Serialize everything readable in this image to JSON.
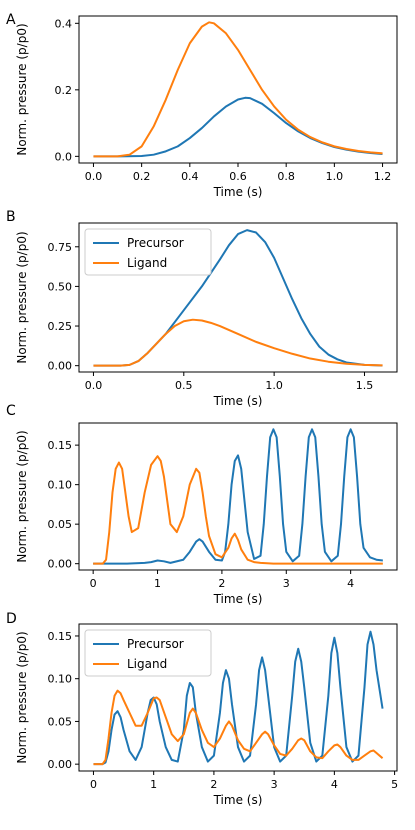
{
  "colors": {
    "precursor": "#1f77b4",
    "ligand": "#ff7f0e",
    "axis": "#000000",
    "legend_border": "#cccccc"
  },
  "chart_data": [
    {
      "panel": "A",
      "type": "line",
      "xlabel": "Time (s)",
      "ylabel": "Norm. pressure (p/p0)",
      "xlim": [
        -0.06,
        1.26
      ],
      "ylim": [
        -0.02,
        0.422
      ],
      "xticks": [
        0.0,
        0.2,
        0.4,
        0.6,
        0.8,
        1.0,
        1.2
      ],
      "xtick_labels": [
        "0.0",
        "0.2",
        "0.4",
        "0.6",
        "0.8",
        "1.0",
        "1.2"
      ],
      "yticks": [
        0.0,
        0.2,
        0.4
      ],
      "ytick_labels": [
        "0.0",
        "0.2",
        "0.4"
      ],
      "grid": false,
      "legend": null,
      "series": [
        {
          "color_key": "precursor",
          "x": [
            0,
            0.1,
            0.2,
            0.25,
            0.3,
            0.35,
            0.4,
            0.45,
            0.5,
            0.55,
            0.6,
            0.63,
            0.65,
            0.7,
            0.75,
            0.8,
            0.85,
            0.9,
            0.95,
            1.0,
            1.05,
            1.1,
            1.15,
            1.2
          ],
          "y": [
            0,
            0,
            0.001,
            0.005,
            0.015,
            0.03,
            0.055,
            0.085,
            0.12,
            0.15,
            0.171,
            0.176,
            0.175,
            0.158,
            0.13,
            0.1,
            0.075,
            0.055,
            0.04,
            0.028,
            0.02,
            0.014,
            0.01,
            0.007
          ]
        },
        {
          "color_key": "ligand",
          "x": [
            0,
            0.1,
            0.15,
            0.2,
            0.25,
            0.3,
            0.35,
            0.4,
            0.45,
            0.48,
            0.5,
            0.55,
            0.6,
            0.65,
            0.7,
            0.75,
            0.8,
            0.85,
            0.9,
            0.95,
            1.0,
            1.05,
            1.1,
            1.15,
            1.2
          ],
          "y": [
            0,
            0,
            0.005,
            0.03,
            0.09,
            0.17,
            0.26,
            0.34,
            0.39,
            0.403,
            0.4,
            0.37,
            0.32,
            0.26,
            0.2,
            0.15,
            0.11,
            0.08,
            0.058,
            0.042,
            0.03,
            0.022,
            0.016,
            0.012,
            0.009
          ]
        }
      ]
    },
    {
      "panel": "B",
      "type": "line",
      "xlabel": "Time (s)",
      "ylabel": "Norm. pressure (p/p0)",
      "xlim": [
        -0.08,
        1.68
      ],
      "ylim": [
        -0.04,
        0.9
      ],
      "xticks": [
        0.0,
        0.5,
        1.0,
        1.5
      ],
      "xtick_labels": [
        "0.0",
        "0.5",
        "1.0",
        "1.5"
      ],
      "yticks": [
        0.0,
        0.25,
        0.5,
        0.75
      ],
      "ytick_labels": [
        "0.00",
        "0.25",
        "0.50",
        "0.75"
      ],
      "grid": false,
      "legend": {
        "placement": "upper-left",
        "entries": [
          {
            "label": "Precursor",
            "color_key": "precursor"
          },
          {
            "label": "Ligand",
            "color_key": "ligand"
          }
        ]
      },
      "series": [
        {
          "color_key": "precursor",
          "x": [
            0,
            0.15,
            0.2,
            0.25,
            0.3,
            0.4,
            0.5,
            0.6,
            0.7,
            0.75,
            0.8,
            0.85,
            0.9,
            0.95,
            1.0,
            1.05,
            1.1,
            1.15,
            1.2,
            1.25,
            1.3,
            1.35,
            1.4,
            1.5,
            1.6
          ],
          "y": [
            0,
            0,
            0.005,
            0.03,
            0.08,
            0.2,
            0.35,
            0.5,
            0.67,
            0.76,
            0.83,
            0.855,
            0.84,
            0.78,
            0.68,
            0.55,
            0.42,
            0.3,
            0.2,
            0.12,
            0.07,
            0.04,
            0.02,
            0.005,
            0.001
          ]
        },
        {
          "color_key": "ligand",
          "x": [
            0,
            0.15,
            0.2,
            0.25,
            0.3,
            0.35,
            0.4,
            0.45,
            0.5,
            0.55,
            0.6,
            0.65,
            0.7,
            0.8,
            0.9,
            1.0,
            1.1,
            1.2,
            1.3,
            1.4,
            1.5,
            1.6
          ],
          "y": [
            0,
            0,
            0.005,
            0.03,
            0.08,
            0.14,
            0.2,
            0.25,
            0.28,
            0.29,
            0.285,
            0.27,
            0.25,
            0.2,
            0.15,
            0.11,
            0.075,
            0.045,
            0.025,
            0.012,
            0.005,
            0.002
          ]
        }
      ]
    },
    {
      "panel": "C",
      "type": "line",
      "xlabel": "Time (s)",
      "ylabel": "Norm. pressure (p/p0)",
      "xlim": [
        -0.22,
        4.72
      ],
      "ylim": [
        -0.008,
        0.178
      ],
      "xticks": [
        0,
        1,
        2,
        3,
        4
      ],
      "xtick_labels": [
        "0",
        "1",
        "2",
        "3",
        "4"
      ],
      "yticks": [
        0.0,
        0.05,
        0.1,
        0.15
      ],
      "ytick_labels": [
        "0.00",
        "0.05",
        "0.10",
        "0.15"
      ],
      "grid": false,
      "legend": null,
      "series": [
        {
          "color_key": "precursor",
          "x": [
            0,
            0.5,
            0.8,
            0.9,
            1.0,
            1.1,
            1.2,
            1.4,
            1.5,
            1.6,
            1.65,
            1.7,
            1.8,
            1.9,
            2.0,
            2.05,
            2.1,
            2.15,
            2.2,
            2.25,
            2.3,
            2.35,
            2.4,
            2.5,
            2.6,
            2.65,
            2.7,
            2.75,
            2.8,
            2.85,
            2.9,
            2.95,
            3.0,
            3.1,
            3.2,
            3.25,
            3.3,
            3.35,
            3.4,
            3.45,
            3.5,
            3.55,
            3.6,
            3.7,
            3.8,
            3.85,
            3.9,
            3.95,
            4.0,
            4.05,
            4.1,
            4.15,
            4.2,
            4.3,
            4.4,
            4.5
          ],
          "y": [
            0,
            0,
            0.001,
            0.002,
            0.004,
            0.003,
            0.001,
            0.005,
            0.015,
            0.028,
            0.031,
            0.028,
            0.015,
            0.005,
            0.004,
            0.015,
            0.05,
            0.1,
            0.13,
            0.137,
            0.12,
            0.08,
            0.04,
            0.006,
            0.01,
            0.05,
            0.11,
            0.16,
            0.17,
            0.16,
            0.11,
            0.05,
            0.015,
            0.003,
            0.01,
            0.05,
            0.11,
            0.16,
            0.17,
            0.16,
            0.11,
            0.05,
            0.015,
            0.003,
            0.01,
            0.05,
            0.11,
            0.16,
            0.17,
            0.16,
            0.11,
            0.05,
            0.02,
            0.008,
            0.005,
            0.004
          ]
        },
        {
          "color_key": "ligand",
          "x": [
            0,
            0.15,
            0.2,
            0.25,
            0.3,
            0.35,
            0.4,
            0.45,
            0.5,
            0.55,
            0.6,
            0.7,
            0.8,
            0.9,
            1.0,
            1.05,
            1.1,
            1.15,
            1.2,
            1.3,
            1.4,
            1.5,
            1.6,
            1.65,
            1.7,
            1.75,
            1.8,
            1.9,
            2.0,
            2.1,
            2.15,
            2.2,
            2.25,
            2.3,
            2.4,
            2.5,
            2.6,
            2.8,
            3.0,
            3.5,
            4.0,
            4.5
          ],
          "y": [
            0,
            0,
            0.005,
            0.04,
            0.09,
            0.12,
            0.128,
            0.12,
            0.09,
            0.06,
            0.04,
            0.045,
            0.09,
            0.125,
            0.136,
            0.13,
            0.11,
            0.08,
            0.05,
            0.04,
            0.06,
            0.1,
            0.12,
            0.115,
            0.09,
            0.06,
            0.035,
            0.012,
            0.008,
            0.02,
            0.032,
            0.038,
            0.03,
            0.018,
            0.005,
            0.002,
            0.001,
            0,
            0,
            0,
            0,
            0
          ]
        }
      ]
    },
    {
      "panel": "D",
      "type": "line",
      "xlabel": "Time (s)",
      "ylabel": "Norm. pressure (p/p0)",
      "xlim": [
        -0.24,
        5.04
      ],
      "ylim": [
        -0.008,
        0.164
      ],
      "xticks": [
        0,
        1,
        2,
        3,
        4,
        5
      ],
      "xtick_labels": [
        "0",
        "1",
        "2",
        "3",
        "4",
        "5"
      ],
      "yticks": [
        0.0,
        0.05,
        0.1,
        0.15
      ],
      "ytick_labels": [
        "0.00",
        "0.05",
        "0.10",
        "0.15"
      ],
      "grid": false,
      "legend": {
        "placement": "upper-left",
        "entries": [
          {
            "label": "Precursor",
            "color_key": "precursor"
          },
          {
            "label": "Ligand",
            "color_key": "ligand"
          }
        ]
      },
      "series": [
        {
          "color_key": "precursor",
          "x": [
            0,
            0.15,
            0.2,
            0.25,
            0.3,
            0.35,
            0.4,
            0.45,
            0.5,
            0.6,
            0.7,
            0.8,
            0.9,
            0.95,
            1.0,
            1.05,
            1.1,
            1.2,
            1.3,
            1.4,
            1.5,
            1.55,
            1.6,
            1.65,
            1.7,
            1.8,
            1.9,
            2.0,
            2.1,
            2.15,
            2.2,
            2.25,
            2.3,
            2.4,
            2.5,
            2.6,
            2.7,
            2.75,
            2.8,
            2.85,
            2.9,
            3.0,
            3.1,
            3.2,
            3.3,
            3.35,
            3.4,
            3.45,
            3.5,
            3.6,
            3.7,
            3.8,
            3.9,
            3.95,
            4.0,
            4.05,
            4.1,
            4.2,
            4.3,
            4.4,
            4.5,
            4.55,
            4.6,
            4.65,
            4.7,
            4.8
          ],
          "y": [
            0,
            0,
            0.002,
            0.015,
            0.04,
            0.058,
            0.062,
            0.055,
            0.04,
            0.015,
            0.005,
            0.02,
            0.06,
            0.075,
            0.078,
            0.07,
            0.05,
            0.02,
            0.005,
            0.003,
            0.04,
            0.08,
            0.095,
            0.09,
            0.06,
            0.02,
            0.003,
            0.01,
            0.06,
            0.095,
            0.11,
            0.1,
            0.07,
            0.02,
            0.003,
            0.01,
            0.07,
            0.11,
            0.125,
            0.11,
            0.08,
            0.02,
            0.003,
            0.01,
            0.08,
            0.12,
            0.135,
            0.12,
            0.09,
            0.025,
            0.003,
            0.01,
            0.08,
            0.13,
            0.148,
            0.13,
            0.09,
            0.02,
            0.003,
            0.01,
            0.09,
            0.14,
            0.155,
            0.14,
            0.11,
            0.065
          ]
        },
        {
          "color_key": "ligand",
          "x": [
            0,
            0.15,
            0.2,
            0.25,
            0.3,
            0.35,
            0.4,
            0.45,
            0.5,
            0.6,
            0.7,
            0.8,
            0.9,
            1.0,
            1.05,
            1.1,
            1.2,
            1.3,
            1.4,
            1.5,
            1.6,
            1.65,
            1.7,
            1.8,
            1.9,
            2.0,
            2.1,
            2.2,
            2.25,
            2.3,
            2.4,
            2.5,
            2.6,
            2.7,
            2.8,
            2.85,
            2.9,
            3.0,
            3.1,
            3.2,
            3.3,
            3.4,
            3.45,
            3.5,
            3.6,
            3.7,
            3.8,
            3.9,
            4.0,
            4.05,
            4.1,
            4.2,
            4.3,
            4.4,
            4.5,
            4.6,
            4.65,
            4.7,
            4.8
          ],
          "y": [
            0,
            0,
            0.005,
            0.03,
            0.06,
            0.08,
            0.086,
            0.083,
            0.075,
            0.06,
            0.045,
            0.045,
            0.06,
            0.077,
            0.078,
            0.075,
            0.055,
            0.035,
            0.027,
            0.035,
            0.06,
            0.065,
            0.06,
            0.04,
            0.025,
            0.02,
            0.03,
            0.045,
            0.05,
            0.045,
            0.028,
            0.018,
            0.015,
            0.025,
            0.035,
            0.038,
            0.035,
            0.022,
            0.012,
            0.01,
            0.018,
            0.028,
            0.03,
            0.028,
            0.015,
            0.008,
            0.007,
            0.015,
            0.022,
            0.023,
            0.02,
            0.01,
            0.005,
            0.005,
            0.01,
            0.015,
            0.016,
            0.013,
            0.007
          ]
        }
      ]
    }
  ]
}
